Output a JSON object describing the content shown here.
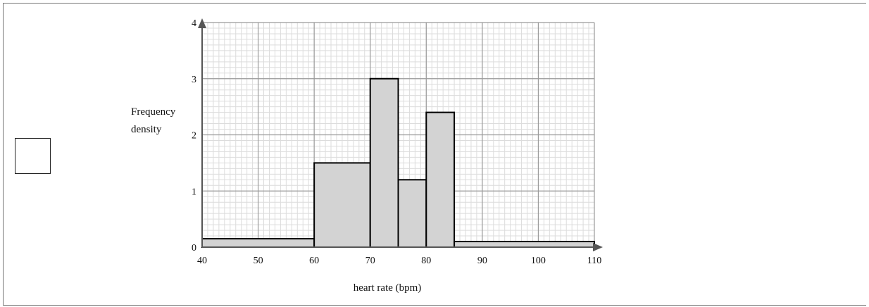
{
  "chart_data": {
    "type": "histogram",
    "xlabel": "heart rate (bpm)",
    "ylabel_lines": [
      "Frequency",
      "density"
    ],
    "xlim": [
      40,
      110
    ],
    "ylim": [
      0,
      4
    ],
    "x_ticks": [
      40,
      50,
      60,
      70,
      80,
      90,
      100,
      110
    ],
    "y_ticks": [
      0,
      1,
      2,
      3,
      4
    ],
    "bars": [
      {
        "x0": 40,
        "x1": 60,
        "value": 0.15
      },
      {
        "x0": 60,
        "x1": 70,
        "value": 1.5
      },
      {
        "x0": 70,
        "x1": 75,
        "value": 3
      },
      {
        "x0": 75,
        "x1": 80,
        "value": 1.2
      },
      {
        "x0": 80,
        "x1": 85,
        "value": 2.4
      },
      {
        "x0": 85,
        "x1": 110,
        "value": 0.1
      }
    ],
    "grid": true,
    "bar_color": "#d3d3d3"
  }
}
